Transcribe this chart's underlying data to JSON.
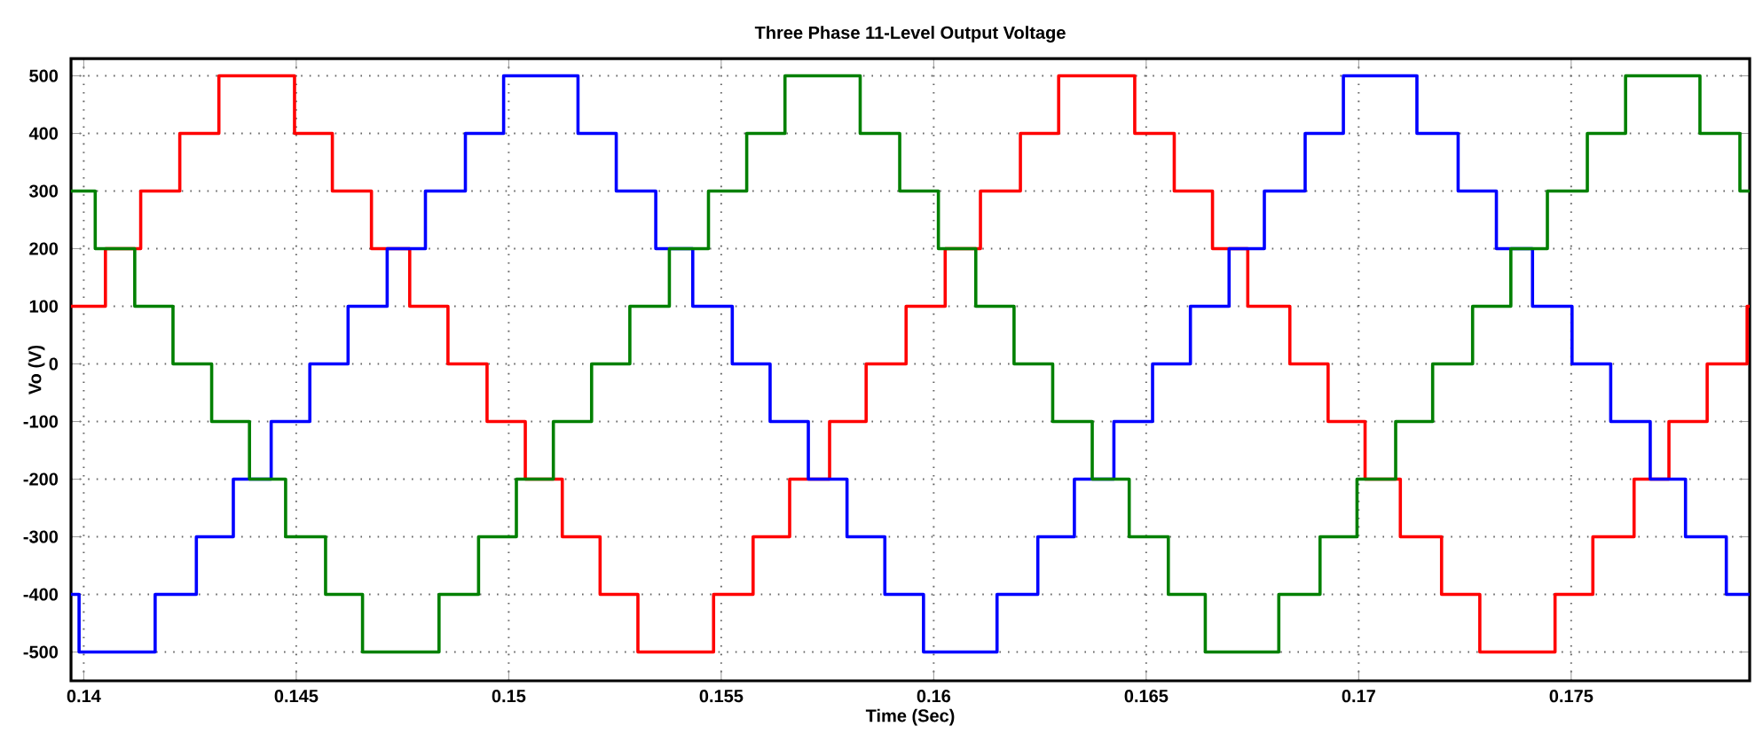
{
  "chart_data": {
    "type": "step",
    "title": "Three Phase 11-Level Output Voltage",
    "xlabel": "Time (Sec)",
    "ylabel": "Vo (V)",
    "xlim": [
      0.1397,
      0.1792
    ],
    "ylim": [
      -550,
      530
    ],
    "xticks": [
      0.14,
      0.145,
      0.15,
      0.155,
      0.16,
      0.165,
      0.17,
      0.175
    ],
    "yticks": [
      -500,
      -400,
      -300,
      -200,
      -100,
      0,
      100,
      200,
      300,
      400,
      500
    ],
    "grid": true,
    "marker": "none",
    "line_style": "solid",
    "series": [
      {
        "color": "#ff0000",
        "x": [
          0.1397,
          0.14051,
          0.14134,
          0.14226,
          0.14318,
          0.14496,
          0.14585,
          0.14677,
          0.14767,
          0.14857,
          0.14949,
          0.15039,
          0.15126,
          0.15215,
          0.15304,
          0.15482,
          0.15575,
          0.15661,
          0.15755,
          0.15841,
          0.15935,
          0.16027,
          0.1611,
          0.16204,
          0.16294,
          0.16473,
          0.16566,
          0.16656,
          0.16739,
          0.16838,
          0.16928,
          0.17015,
          0.17098,
          0.17195,
          0.17285,
          0.17462,
          0.17551,
          0.17648,
          0.1773,
          0.1782,
          0.17914,
          0.1792
        ],
        "values": [
          100,
          200,
          300,
          400,
          500,
          400,
          300,
          200,
          100,
          0,
          -100,
          -200,
          -300,
          -400,
          -500,
          -400,
          -300,
          -200,
          -100,
          0,
          100,
          200,
          300,
          400,
          500,
          400,
          300,
          200,
          100,
          0,
          -100,
          -200,
          -300,
          -400,
          -500,
          -400,
          -300,
          -200,
          -100,
          0,
          100,
          100
        ]
      },
      {
        "color": "#0000ff",
        "x": [
          0.1397,
          0.13989,
          0.14168,
          0.14265,
          0.14352,
          0.14441,
          0.14532,
          0.14622,
          0.14714,
          0.14804,
          0.14898,
          0.14988,
          0.15163,
          0.15253,
          0.15346,
          0.15433,
          0.15526,
          0.15615,
          0.15705,
          0.15796,
          0.15885,
          0.15976,
          0.16149,
          0.16245,
          0.16331,
          0.16424,
          0.16515,
          0.16604,
          0.16695,
          0.16778,
          0.16874,
          0.16964,
          0.17137,
          0.17234,
          0.17324,
          0.17409,
          0.17502,
          0.17593,
          0.17686,
          0.17769,
          0.17865,
          0.1792
        ],
        "values": [
          -400,
          -500,
          -400,
          -300,
          -200,
          -100,
          0,
          100,
          200,
          300,
          400,
          500,
          400,
          300,
          200,
          100,
          0,
          -100,
          -200,
          -300,
          -400,
          -500,
          -400,
          -300,
          -200,
          -100,
          0,
          100,
          200,
          300,
          400,
          500,
          400,
          300,
          200,
          100,
          0,
          -100,
          -200,
          -300,
          -400,
          -400
        ]
      },
      {
        "color": "#008000",
        "x": [
          0.1397,
          0.14027,
          0.1412,
          0.1421,
          0.14301,
          0.1439,
          0.14475,
          0.14569,
          0.14656,
          0.14836,
          0.14929,
          0.15018,
          0.15105,
          0.15195,
          0.15285,
          0.15378,
          0.1547,
          0.1556,
          0.1565,
          0.15827,
          0.1592,
          0.16011,
          0.16099,
          0.16189,
          0.1628,
          0.16373,
          0.1646,
          0.16552,
          0.16639,
          0.16812,
          0.16909,
          0.16996,
          0.17087,
          0.17174,
          0.17268,
          0.17358,
          0.17444,
          0.17538,
          0.17628,
          0.17803,
          0.17897,
          0.1792
        ],
        "values": [
          300,
          200,
          100,
          0,
          -100,
          -200,
          -300,
          -400,
          -500,
          -400,
          -300,
          -200,
          -100,
          0,
          100,
          200,
          300,
          400,
          500,
          400,
          300,
          200,
          100,
          0,
          -100,
          -200,
          -300,
          -400,
          -500,
          -400,
          -300,
          -200,
          -100,
          0,
          100,
          200,
          300,
          400,
          500,
          400,
          300,
          300
        ]
      }
    ]
  }
}
